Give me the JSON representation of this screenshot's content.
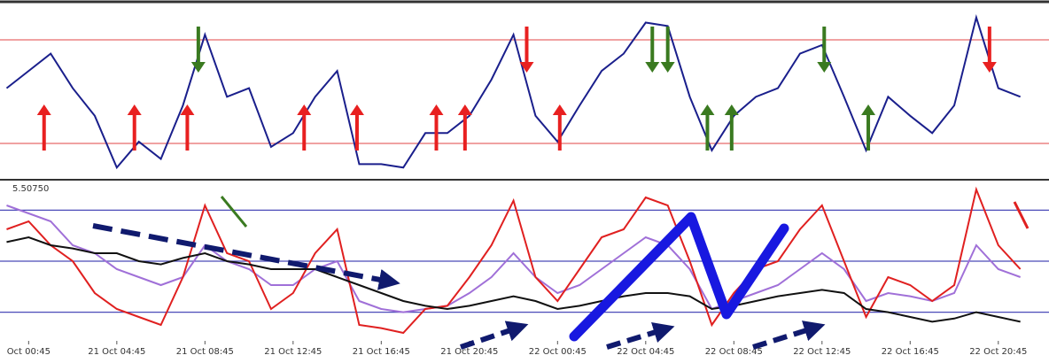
{
  "chart_data": [
    {
      "type": "line",
      "xlim": [
        -1.3,
        46.3
      ],
      "ylim": [
        0,
        100
      ],
      "hlines": [
        80,
        20
      ],
      "hline_color": "#e86a6a",
      "x": [
        -1,
        0,
        1,
        2,
        3,
        4,
        5,
        6,
        7,
        8,
        9,
        10,
        11,
        12,
        13,
        14,
        15,
        16,
        17,
        18,
        19,
        20,
        21,
        22,
        23,
        24,
        25,
        26,
        27,
        28,
        29,
        30,
        31,
        32,
        33,
        34,
        35,
        36,
        37,
        38,
        39,
        40,
        41,
        42,
        43,
        44,
        45
      ],
      "series": [
        {
          "color": "#1a1f8c",
          "values": [
            52,
            62,
            72,
            52,
            36,
            6,
            21,
            11,
            42,
            83,
            47,
            52,
            18,
            26,
            47,
            62,
            8,
            8,
            6,
            26,
            26,
            36,
            57,
            83,
            36,
            21,
            42,
            62,
            72,
            90,
            88,
            47,
            16,
            36,
            47,
            52,
            72,
            77,
            47,
            16,
            47,
            36,
            26,
            42,
            93,
            52,
            47
          ]
        }
      ],
      "signals": [
        {
          "x": 0.7,
          "color": "#e82020",
          "direction": "up"
        },
        {
          "x": 4.8,
          "color": "#e82020",
          "direction": "up"
        },
        {
          "x": 7.2,
          "color": "#e82020",
          "direction": "up"
        },
        {
          "x": 12.5,
          "color": "#e82020",
          "direction": "up"
        },
        {
          "x": 14.9,
          "color": "#e82020",
          "direction": "up"
        },
        {
          "x": 18.5,
          "color": "#e82020",
          "direction": "up"
        },
        {
          "x": 19.8,
          "color": "#e82020",
          "direction": "up"
        },
        {
          "x": 24.1,
          "color": "#e82020",
          "direction": "up"
        },
        {
          "x": 22.6,
          "color": "#e82020",
          "direction": "down"
        },
        {
          "x": 43.6,
          "color": "#e82020",
          "direction": "down"
        },
        {
          "x": 7.7,
          "color": "#3a7a20",
          "direction": "down"
        },
        {
          "x": 28.3,
          "color": "#3a7a20",
          "direction": "down"
        },
        {
          "x": 29.0,
          "color": "#3a7a20",
          "direction": "down"
        },
        {
          "x": 36.1,
          "color": "#3a7a20",
          "direction": "down"
        },
        {
          "x": 30.8,
          "color": "#3a7a20",
          "direction": "up"
        },
        {
          "x": 31.9,
          "color": "#3a7a20",
          "direction": "up"
        },
        {
          "x": 38.1,
          "color": "#3a7a20",
          "direction": "up"
        }
      ]
    },
    {
      "type": "line",
      "xlim": [
        -1.3,
        46.3
      ],
      "ylim": [
        0,
        100
      ],
      "hlines": [
        82,
        50,
        18
      ],
      "hline_color": "#4a4ab8",
      "price_label": "5.50750",
      "x": [
        -1,
        0,
        1,
        2,
        3,
        4,
        5,
        6,
        7,
        8,
        9,
        10,
        11,
        12,
        13,
        14,
        15,
        16,
        17,
        18,
        19,
        20,
        21,
        22,
        23,
        24,
        25,
        26,
        27,
        28,
        29,
        30,
        31,
        32,
        33,
        34,
        35,
        36,
        37,
        38,
        39,
        40,
        41,
        42,
        43,
        44,
        45
      ],
      "series": [
        {
          "color": "#a070d8",
          "values": [
            85,
            80,
            75,
            60,
            55,
            45,
            40,
            35,
            40,
            60,
            50,
            45,
            35,
            35,
            45,
            50,
            25,
            20,
            18,
            20,
            22,
            30,
            40,
            55,
            40,
            30,
            35,
            45,
            55,
            65,
            60,
            45,
            20,
            25,
            30,
            35,
            45,
            55,
            45,
            25,
            30,
            28,
            25,
            30,
            60,
            45,
            40
          ]
        },
        {
          "color": "#e02020",
          "values": [
            70,
            75,
            60,
            50,
            30,
            20,
            15,
            10,
            40,
            85,
            55,
            50,
            20,
            30,
            55,
            70,
            10,
            8,
            5,
            20,
            22,
            40,
            60,
            88,
            40,
            25,
            45,
            65,
            70,
            90,
            85,
            50,
            10,
            30,
            45,
            50,
            70,
            85,
            50,
            15,
            40,
            35,
            25,
            35,
            95,
            60,
            45
          ]
        },
        {
          "color": "#111111",
          "values": [
            62,
            65,
            60,
            58,
            55,
            55,
            50,
            48,
            52,
            55,
            50,
            48,
            45,
            45,
            45,
            40,
            35,
            30,
            25,
            22,
            20,
            22,
            25,
            28,
            25,
            20,
            22,
            25,
            28,
            30,
            30,
            28,
            20,
            22,
            25,
            28,
            30,
            32,
            30,
            20,
            18,
            15,
            12,
            14,
            18,
            15,
            12
          ]
        }
      ],
      "xticks": [
        {
          "value": 0,
          "label": "Oct 00:45"
        },
        {
          "value": 4,
          "label": "21 Oct 04:45"
        },
        {
          "value": 8,
          "label": "21 Oct 08:45"
        },
        {
          "value": 12,
          "label": "21 Oct 12:45"
        },
        {
          "value": 16,
          "label": "21 Oct 16:45"
        },
        {
          "value": 20,
          "label": "21 Oct 20:45"
        },
        {
          "value": 24,
          "label": "22 Oct 00:45"
        },
        {
          "value": 28,
          "label": "22 Oct 04:45"
        },
        {
          "value": 32,
          "label": "22 Oct 08:45"
        },
        {
          "value": 36,
          "label": "22 Oct 12:45"
        },
        {
          "value": 40,
          "label": "22 Oct 16:45"
        },
        {
          "value": 44,
          "label": "22 Oct 20:45"
        }
      ]
    }
  ]
}
